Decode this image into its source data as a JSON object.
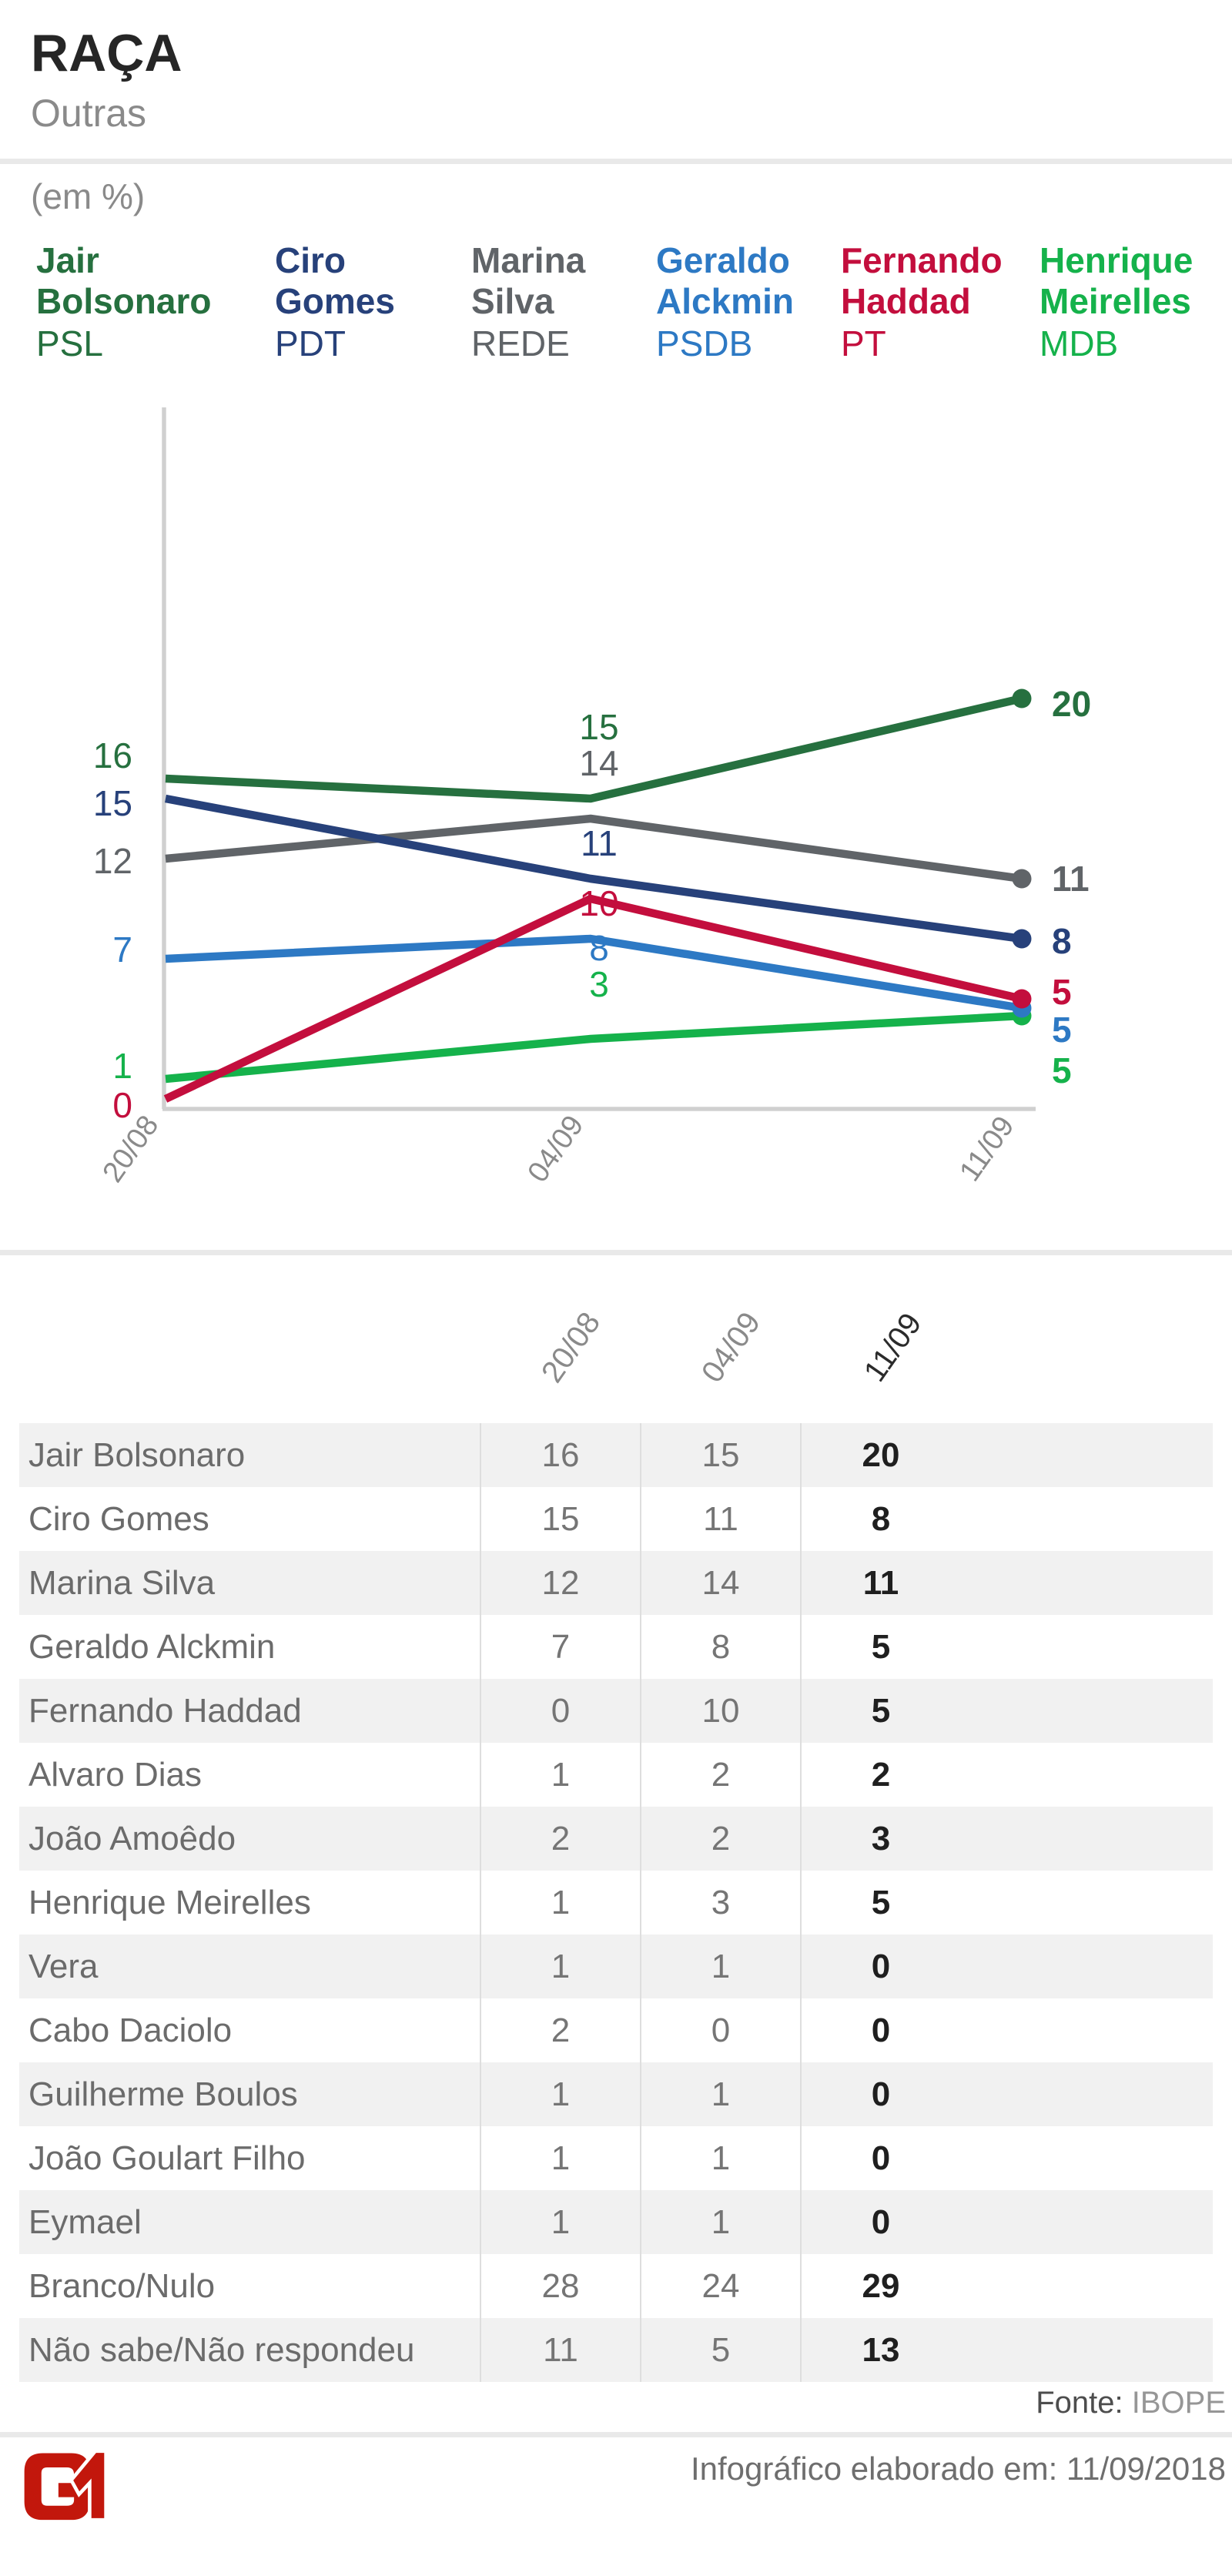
{
  "header": {
    "title": "RAÇA",
    "subtitle": "Outras",
    "unit_label": "(em %)"
  },
  "chart_data": {
    "type": "line",
    "title": "RAÇA - Outras (em %)",
    "x": [
      "20/08",
      "04/09",
      "11/09"
    ],
    "ylim": [
      0,
      34
    ],
    "grid": false,
    "legend_position": "top",
    "series": [
      {
        "name": "Jair Bolsonaro",
        "name_lines": [
          "Jair",
          "Bolsonaro"
        ],
        "party": "PSL",
        "color": "#26703f",
        "values": [
          16,
          15,
          20
        ]
      },
      {
        "name": "Ciro Gomes",
        "name_lines": [
          "Ciro",
          "Gomes"
        ],
        "party": "PDT",
        "color": "#27417a",
        "values": [
          15,
          11,
          8
        ]
      },
      {
        "name": "Marina Silva",
        "name_lines": [
          "Marina",
          "Silva"
        ],
        "party": "REDE",
        "color": "#606468",
        "values": [
          12,
          14,
          11
        ]
      },
      {
        "name": "Geraldo Alckmin",
        "name_lines": [
          "Geraldo",
          "Alckmin"
        ],
        "party": "PSDB",
        "color": "#2d79c4",
        "values": [
          7,
          8,
          5
        ]
      },
      {
        "name": "Fernando Haddad",
        "name_lines": [
          "Fernando",
          "Haddad"
        ],
        "party": "PT",
        "color": "#c30e3d",
        "values": [
          0,
          10,
          5
        ]
      },
      {
        "name": "Henrique Meirelles",
        "name_lines": [
          "Henrique",
          "Meirelles"
        ],
        "party": "MDB",
        "color": "#15b24b",
        "values": [
          1,
          3,
          5
        ]
      }
    ]
  },
  "table": {
    "columns": [
      "20/08",
      "04/09",
      "11/09"
    ],
    "rows": [
      {
        "label": "Jair Bolsonaro",
        "values": [
          16,
          15,
          20
        ]
      },
      {
        "label": "Ciro Gomes",
        "values": [
          15,
          11,
          8
        ]
      },
      {
        "label": "Marina Silva",
        "values": [
          12,
          14,
          11
        ]
      },
      {
        "label": "Geraldo Alckmin",
        "values": [
          7,
          8,
          5
        ]
      },
      {
        "label": "Fernando Haddad",
        "values": [
          0,
          10,
          5
        ]
      },
      {
        "label": "Alvaro Dias",
        "values": [
          1,
          2,
          2
        ]
      },
      {
        "label": "João Amoêdo",
        "values": [
          2,
          2,
          3
        ]
      },
      {
        "label": "Henrique Meirelles",
        "values": [
          1,
          3,
          5
        ]
      },
      {
        "label": "Vera",
        "values": [
          1,
          1,
          0
        ]
      },
      {
        "label": "Cabo Daciolo",
        "values": [
          2,
          0,
          0
        ]
      },
      {
        "label": "Guilherme Boulos",
        "values": [
          1,
          1,
          0
        ]
      },
      {
        "label": "João Goulart Filho",
        "values": [
          1,
          1,
          0
        ]
      },
      {
        "label": "Eymael",
        "values": [
          1,
          1,
          0
        ]
      },
      {
        "label": "Branco/Nulo",
        "values": [
          28,
          24,
          29
        ]
      },
      {
        "label": "Não sabe/Não respondeu",
        "values": [
          11,
          5,
          13
        ]
      }
    ]
  },
  "footer": {
    "source_label": "Fonte:",
    "source": "IBOPE",
    "credit": "Infográfico elaborado em: 11/09/2018",
    "logo": "G1",
    "logo_color": "#c2170c"
  }
}
